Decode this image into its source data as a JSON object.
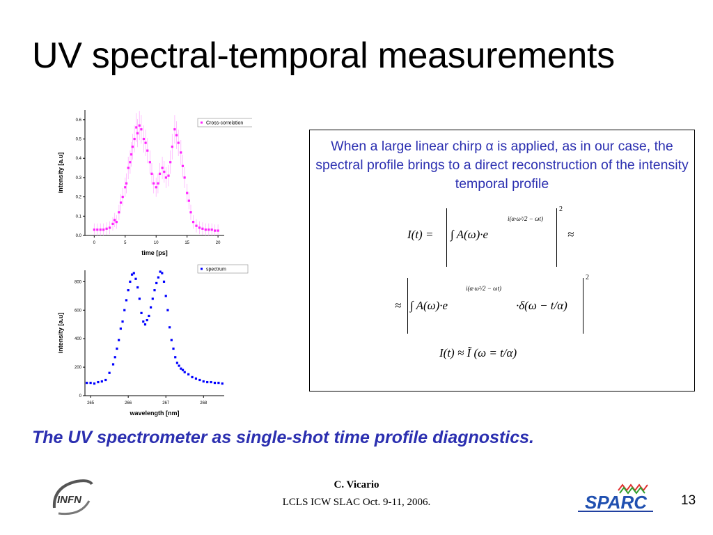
{
  "slide": {
    "title": "UV spectral-temporal measurements",
    "description_text": "When a large linear chirp α is applied, as in our case, the spectral profile brings to a direct reconstruction of the intensity temporal profile",
    "tagline": "The UV spectrometer as single-shot time profile diagnostics.",
    "footer_author": "C. Vicario",
    "footer_event": "LCLS ICW SLAC Oct. 9-11, 2006.",
    "page_number": "13",
    "logo_left_text": "INFN",
    "logo_right_text": "SPARC"
  },
  "colors": {
    "title": "#000000",
    "accent_text": "#2b2fb0",
    "cross_correlation": "#ff22ff",
    "spectrum": "#0000ff"
  },
  "formulas": {
    "f1_lhs": "I(t) =",
    "f1_rhs": "∫ A(ω)·e",
    "f1_exp": "i(α·ω²/2 − ωt)",
    "f1_power": "2",
    "f1_approx": "≈",
    "f2_lead": "≈",
    "f2_body": "∫ A(ω)·e",
    "f2_exp": "i(α·ω²/2 − ωt)",
    "f2_delta": "·δ(ω − t/α)",
    "f2_power": "2",
    "f3": "I(t) ≈ Ĩ (ω = t/α)"
  },
  "chart_data": [
    {
      "type": "scatter",
      "legend": [
        "Cross-correlation"
      ],
      "legend_position": "top-right",
      "xlabel": "time [ps]",
      "ylabel": "intensity [a.u]",
      "xlim": [
        -1.5,
        21
      ],
      "ylim": [
        0,
        0.65
      ],
      "xticks": [
        "0",
        "5",
        "10",
        "15",
        "20"
      ],
      "yticks": [
        "0.0",
        "0.1",
        "0.2",
        "0.3",
        "0.4",
        "0.5",
        "0.6"
      ],
      "error_bars": true,
      "series": [
        {
          "name": "Cross-correlation",
          "x": [
            0,
            0.5,
            1,
            1.5,
            2,
            2.5,
            3,
            3.3,
            3.6,
            4,
            4.3,
            4.6,
            5,
            5.2,
            5.5,
            5.8,
            6,
            6.2,
            6.5,
            6.8,
            7,
            7.3,
            7.6,
            8,
            8.3,
            8.6,
            9,
            9.3,
            9.6,
            10,
            10.3,
            10.6,
            11,
            11.3,
            11.6,
            12,
            12.3,
            12.6,
            13,
            13.3,
            13.6,
            14,
            14.3,
            14.6,
            15,
            15.3,
            15.6,
            16,
            16.5,
            17,
            17.5,
            18,
            18.5,
            19,
            19.5,
            20
          ],
          "y": [
            0.03,
            0.03,
            0.03,
            0.03,
            0.035,
            0.04,
            0.06,
            0.08,
            0.07,
            0.12,
            0.17,
            0.2,
            0.25,
            0.27,
            0.35,
            0.38,
            0.42,
            0.46,
            0.5,
            0.56,
            0.53,
            0.57,
            0.55,
            0.5,
            0.48,
            0.44,
            0.38,
            0.32,
            0.27,
            0.25,
            0.27,
            0.32,
            0.35,
            0.33,
            0.3,
            0.31,
            0.38,
            0.46,
            0.55,
            0.52,
            0.48,
            0.43,
            0.36,
            0.3,
            0.22,
            0.18,
            0.12,
            0.07,
            0.05,
            0.04,
            0.035,
            0.03,
            0.03,
            0.03,
            0.025,
            0.025
          ]
        }
      ]
    },
    {
      "type": "scatter",
      "legend": [
        "spectrum"
      ],
      "legend_position": "top-right",
      "xlabel": "wavelength [nm]",
      "ylabel": "intensity [a.u]",
      "xlim": [
        264.85,
        268.55
      ],
      "ylim": [
        0,
        880
      ],
      "xticks": [
        "265",
        "266",
        "267",
        "268"
      ],
      "yticks": [
        "0",
        "200",
        "400",
        "600",
        "800"
      ],
      "series": [
        {
          "name": "spectrum",
          "x": [
            264.9,
            265.0,
            265.1,
            265.2,
            265.3,
            265.4,
            265.5,
            265.6,
            265.65,
            265.7,
            265.75,
            265.8,
            265.85,
            265.9,
            265.95,
            266.0,
            266.05,
            266.1,
            266.15,
            266.2,
            266.25,
            266.3,
            266.35,
            266.4,
            266.45,
            266.5,
            266.55,
            266.6,
            266.65,
            266.7,
            266.75,
            266.8,
            266.85,
            266.9,
            266.95,
            267.0,
            267.05,
            267.1,
            267.15,
            267.2,
            267.25,
            267.3,
            267.35,
            267.4,
            267.45,
            267.5,
            267.6,
            267.7,
            267.8,
            267.9,
            268.0,
            268.1,
            268.2,
            268.3,
            268.4,
            268.5
          ],
          "y": [
            90,
            90,
            85,
            95,
            100,
            110,
            160,
            220,
            270,
            330,
            390,
            470,
            520,
            600,
            670,
            740,
            800,
            850,
            860,
            820,
            760,
            680,
            580,
            520,
            500,
            530,
            560,
            620,
            680,
            740,
            790,
            830,
            870,
            860,
            800,
            700,
            600,
            480,
            390,
            330,
            270,
            230,
            210,
            190,
            180,
            165,
            150,
            130,
            120,
            110,
            100,
            95,
            95,
            90,
            90,
            85
          ]
        }
      ]
    }
  ]
}
